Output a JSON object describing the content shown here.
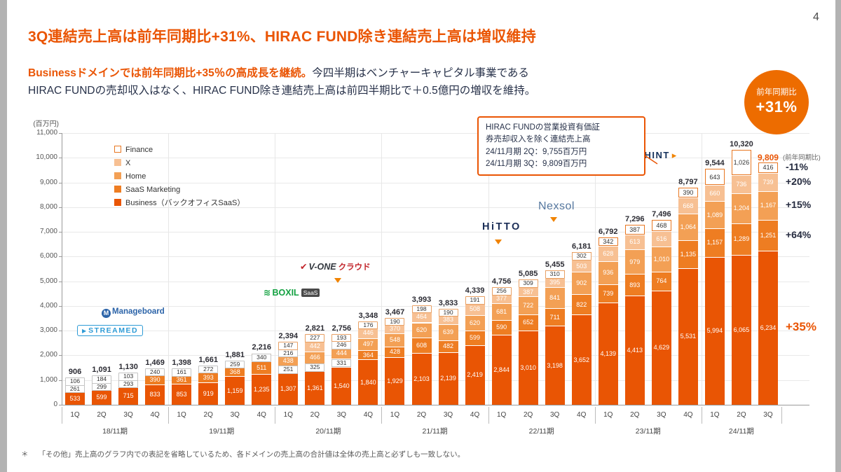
{
  "page": {
    "number": "4"
  },
  "header": {
    "title": "3Q連結売上高は前年同期比+31%、HIRAC FUND除き連結売上高は増収維持",
    "lead": {
      "highlight": "Businessドメインでは前年同期比+35％の高成長を継続。",
      "line1_rest": "今四半期はベンチャーキャピタル事業である",
      "line2": "HIRAC FUNDの売却収入はなく、HIRAC FUND除き連結売上高は前四半期比で＋0.5億円の増収を維持。"
    },
    "badge": {
      "caption": "前年同期比",
      "value": "+31%"
    }
  },
  "callout": {
    "lines": [
      "HIRAC FUNDの営業投資有価証",
      "券売却収入を除く連結売上高",
      "24/11月期 2Q：9,755百万円",
      "24/11月期 3Q：9,809百万円"
    ]
  },
  "footnote": {
    "marker": "＊",
    "text": "「その他」売上高のグラフ内での表記を省略しているため、各ドメインの売上高の合計値は全体の売上高と必ずしも一致しない。"
  },
  "chart_data": {
    "type": "bar",
    "stacked": true,
    "unit_label": "(百万円)",
    "ylim": [
      0,
      11000
    ],
    "ytick_step": 1000,
    "series_order": [
      "business",
      "saas",
      "home",
      "x",
      "finance"
    ],
    "legend": [
      {
        "key": "finance",
        "label": "Finance"
      },
      {
        "key": "x",
        "label": "X"
      },
      {
        "key": "home",
        "label": "Home"
      },
      {
        "key": "saas",
        "label": "SaaS Marketing"
      },
      {
        "key": "business",
        "label": "Business（バックオフィスSaaS）"
      }
    ],
    "colors": {
      "business": "#e95504",
      "saas": "#ee7d22",
      "home": "#f3a055",
      "x": "#f7c093",
      "finance_bg": "#ffffff",
      "finance_border": "#e87722",
      "highlight": "#ea5504"
    },
    "years": [
      {
        "label": "18/11期",
        "quarters": [
          {
            "q": "1Q",
            "total": 906,
            "segments": {
              "business": 533,
              "saas": 261,
              "home": 106
            }
          },
          {
            "q": "2Q",
            "total": 1091,
            "segments": {
              "business": 599,
              "saas": 299,
              "home": 184
            }
          },
          {
            "q": "3Q",
            "total": 1130,
            "segments": {
              "business": 715,
              "saas": 293,
              "home": 103
            }
          },
          {
            "q": "4Q",
            "total": 1469,
            "segments": {
              "business": 833,
              "saas": 390,
              "home": 240
            }
          }
        ]
      },
      {
        "label": "19/11期",
        "quarters": [
          {
            "q": "1Q",
            "total": 1398,
            "segments": {
              "business": 853,
              "saas": 361,
              "home": 161
            }
          },
          {
            "q": "2Q",
            "total": 1661,
            "segments": {
              "business": 919,
              "saas": 393,
              "home": 272
            }
          },
          {
            "q": "3Q",
            "total": 1881,
            "segments": {
              "business": 1159,
              "saas": 368,
              "home": 259
            }
          },
          {
            "q": "4Q",
            "total": 2216,
            "segments": {
              "business": 1235,
              "saas": 511,
              "home": 340
            }
          }
        ]
      },
      {
        "label": "20/11期",
        "quarters": [
          {
            "q": "1Q",
            "total": 2394,
            "segments": {
              "business": 1307,
              "saas": 251,
              "home": 438,
              "x": 216,
              "finance": 147
            }
          },
          {
            "q": "2Q",
            "total": 2821,
            "segments": {
              "business": 1361,
              "saas": 325,
              "home": 466,
              "x": 442,
              "finance": 227
            }
          },
          {
            "q": "3Q",
            "total": 2756,
            "segments": {
              "business": 1540,
              "saas": 331,
              "home": 444,
              "x": 246,
              "finance": 193
            }
          },
          {
            "q": "4Q",
            "total": 3348,
            "segments": {
              "business": 1840,
              "saas": 364,
              "home": 497,
              "x": 446,
              "finance": 176
            }
          }
        ]
      },
      {
        "label": "21/11期",
        "quarters": [
          {
            "q": "1Q",
            "total": 3467,
            "segments": {
              "business": 1929,
              "saas": 428,
              "home": 548,
              "x": 370,
              "finance": 190
            }
          },
          {
            "q": "2Q",
            "total": 3993,
            "segments": {
              "business": 2103,
              "saas": 608,
              "home": 620,
              "x": 464,
              "finance": 198
            }
          },
          {
            "q": "3Q",
            "total": 3833,
            "segments": {
              "business": 2139,
              "saas": 482,
              "home": 639,
              "x": 383,
              "finance": 190
            }
          },
          {
            "q": "4Q",
            "total": 4339,
            "segments": {
              "business": 2419,
              "saas": 599,
              "home": 620,
              "x": 508,
              "finance": 191
            }
          }
        ]
      },
      {
        "label": "22/11期",
        "quarters": [
          {
            "q": "1Q",
            "total": 4756,
            "segments": {
              "business": 2844,
              "saas": 590,
              "home": 681,
              "x": 377,
              "finance": 256
            }
          },
          {
            "q": "2Q",
            "total": 5085,
            "segments": {
              "business": 3010,
              "saas": 652,
              "home": 722,
              "x": 387,
              "finance": 309
            }
          },
          {
            "q": "3Q",
            "total": 5455,
            "segments": {
              "business": 3198,
              "saas": 711,
              "home": 841,
              "x": 395,
              "finance": 310
            }
          },
          {
            "q": "4Q",
            "total": 6181,
            "segments": {
              "business": 3652,
              "saas": 822,
              "home": 902,
              "x": 503,
              "finance": 302
            }
          }
        ]
      },
      {
        "label": "23/11期",
        "quarters": [
          {
            "q": "1Q",
            "total": 6792,
            "segments": {
              "business": 4139,
              "saas": 739,
              "home": 936,
              "x": 628,
              "finance": 342
            }
          },
          {
            "q": "2Q",
            "total": 7296,
            "segments": {
              "business": 4413,
              "saas": 893,
              "home": 979,
              "x": 613,
              "finance": 387
            }
          },
          {
            "q": "3Q",
            "total": 7496,
            "segments": {
              "business": 4629,
              "saas": 764,
              "home": 1010,
              "x": 616,
              "finance": 468
            }
          },
          {
            "q": "4Q",
            "total": 8797,
            "segments": {
              "business": 5531,
              "saas": 1135,
              "home": 1064,
              "x": 668,
              "finance": 390
            }
          }
        ]
      },
      {
        "label": "24/11期",
        "quarters": [
          {
            "q": "1Q",
            "total": 9544,
            "segments": {
              "business": 5994,
              "saas": 1157,
              "home": 1089,
              "x": 660,
              "finance": 643
            }
          },
          {
            "q": "2Q",
            "total": 10320,
            "segments": {
              "business": 6065,
              "saas": 1289,
              "home": 1204,
              "x": 736,
              "finance": 1026
            }
          },
          {
            "q": "3Q",
            "total": 9809,
            "segments": {
              "business": 6234,
              "saas": 1251,
              "home": 1167,
              "x": 739,
              "finance": 416
            },
            "highlight": true
          }
        ]
      }
    ],
    "yoy_caption": "(前年同期比)",
    "yoy_annotations": [
      {
        "segment": "finance",
        "label": "-11%"
      },
      {
        "segment": "x",
        "label": "+20%"
      },
      {
        "segment": "home",
        "label": "+15%"
      },
      {
        "segment": "saas",
        "label": "+64%"
      },
      {
        "segment": "business",
        "label": "+35%",
        "emphasis": true
      }
    ],
    "logos": [
      {
        "id": "streamed",
        "text": "STREAMED"
      },
      {
        "id": "manageboard",
        "text": "Manageboard"
      },
      {
        "id": "boxil",
        "text": "BOXIL",
        "badge": "SaaS"
      },
      {
        "id": "vone",
        "text": "V-ONE",
        "suffix": "クラウド"
      },
      {
        "id": "hitto",
        "text": "HiTTO"
      },
      {
        "id": "nexsol",
        "text": "Nexsol"
      },
      {
        "id": "bizhint",
        "text": "BIZHINT"
      }
    ],
    "launch_markers": [
      "vone",
      "hitto",
      "nexsol"
    ]
  }
}
